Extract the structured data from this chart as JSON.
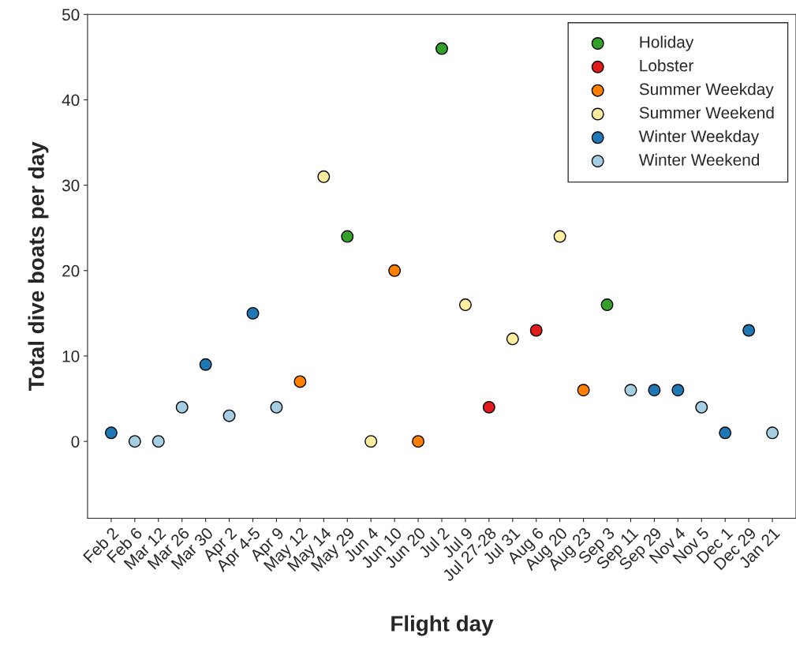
{
  "chart_data": {
    "type": "scatter",
    "xlabel": "Flight day",
    "ylabel": "Total dive boats per day",
    "categories": [
      "Feb 2",
      "Feb 6",
      "Mar 12",
      "Mar 26",
      "Mar 30",
      "Apr 2",
      "Apr 4-5",
      "Apr 9",
      "May 12",
      "May 14",
      "May 29",
      "Jun 4",
      "Jun 10",
      "Jun 20",
      "Jul 2",
      "Jul 9",
      "Jul 27-28",
      "Jul 31",
      "Aug 6",
      "Aug 20",
      "Aug 23",
      "Sep 3",
      "Sep 11",
      "Sep 29",
      "Nov 4",
      "Nov 5",
      "Dec 1",
      "Dec 29",
      "Jan 21"
    ],
    "series": [
      {
        "name": "Holiday",
        "color": "#33a02c",
        "values": [
          null,
          null,
          null,
          null,
          null,
          null,
          null,
          null,
          null,
          null,
          24,
          null,
          null,
          null,
          46,
          null,
          null,
          null,
          null,
          null,
          null,
          16,
          null,
          null,
          null,
          null,
          null,
          null,
          null
        ]
      },
      {
        "name": "Lobster",
        "color": "#e31a1c",
        "values": [
          null,
          null,
          null,
          null,
          null,
          null,
          null,
          null,
          null,
          null,
          null,
          null,
          null,
          null,
          null,
          null,
          4,
          null,
          13,
          null,
          null,
          null,
          null,
          null,
          null,
          null,
          null,
          null,
          null
        ]
      },
      {
        "name": "Summer Weekday",
        "color": "#ff7f00",
        "values": [
          null,
          null,
          null,
          null,
          null,
          null,
          null,
          null,
          7,
          null,
          null,
          null,
          20,
          0,
          null,
          null,
          null,
          null,
          null,
          null,
          6,
          null,
          null,
          null,
          null,
          null,
          null,
          null,
          null
        ]
      },
      {
        "name": "Summer Weekend",
        "color": "#ffeda0",
        "values": [
          null,
          null,
          null,
          null,
          null,
          null,
          null,
          null,
          null,
          31,
          null,
          0,
          null,
          null,
          null,
          16,
          null,
          12,
          null,
          24,
          null,
          null,
          null,
          null,
          null,
          null,
          null,
          null,
          null
        ]
      },
      {
        "name": "Winter Weekday",
        "color": "#1f78b4",
        "values": [
          1,
          null,
          null,
          null,
          9,
          null,
          15,
          null,
          null,
          null,
          null,
          null,
          null,
          null,
          null,
          null,
          null,
          null,
          null,
          null,
          null,
          null,
          null,
          6,
          6,
          null,
          1,
          13,
          null
        ]
      },
      {
        "name": "Winter Weekend",
        "color": "#a6cee3",
        "values": [
          null,
          0,
          0,
          4,
          null,
          3,
          null,
          4,
          null,
          null,
          null,
          null,
          null,
          null,
          null,
          null,
          null,
          null,
          null,
          null,
          null,
          null,
          6,
          null,
          null,
          4,
          null,
          null,
          1
        ]
      }
    ],
    "ylim": [
      -9,
      50
    ],
    "yticks": [
      0,
      10,
      20,
      30,
      40,
      50
    ],
    "grid": false,
    "legend": "top right",
    "marker": "circle"
  }
}
